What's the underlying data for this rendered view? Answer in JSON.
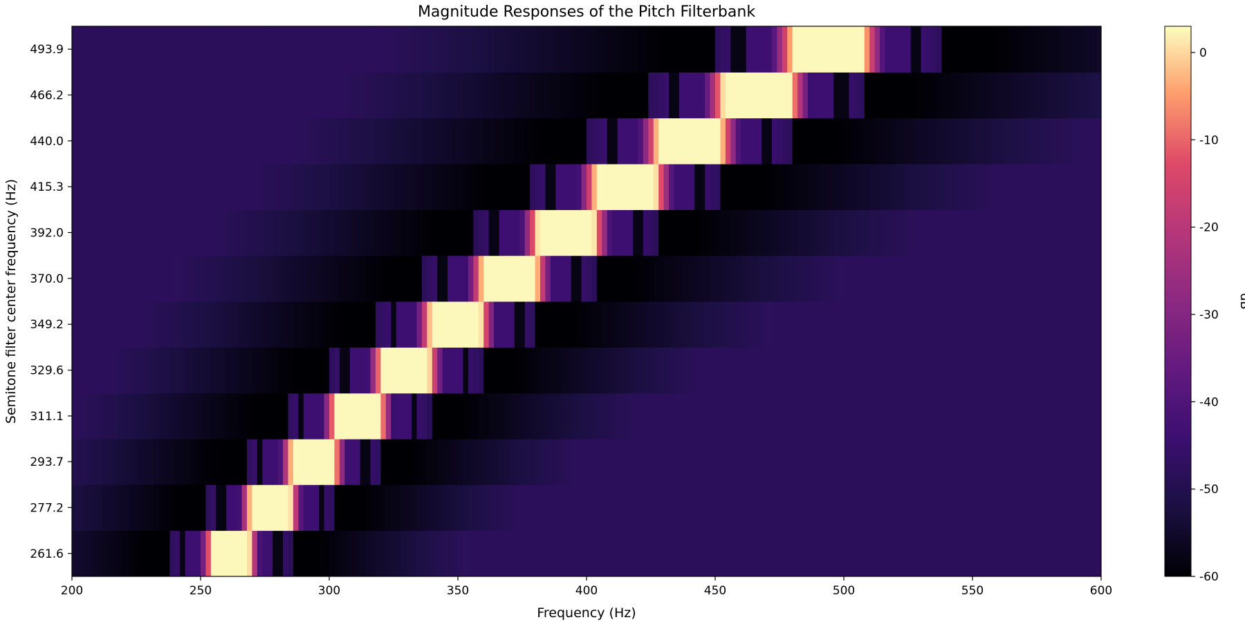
{
  "chart_data": {
    "type": "heatmap",
    "title": "Magnitude Responses of the Pitch Filterbank",
    "xlabel": "Frequency (Hz)",
    "ylabel": "Semitone filter center frequency (Hz)",
    "xlim": [
      200,
      600
    ],
    "x_ticks": [
      200,
      250,
      300,
      350,
      400,
      450,
      500,
      550,
      600
    ],
    "y_ticks": [
      "261.6",
      "277.2",
      "293.7",
      "311.1",
      "329.6",
      "349.2",
      "370.0",
      "392.0",
      "415.3",
      "440.0",
      "466.2",
      "493.9"
    ],
    "center_frequencies": [
      261.6,
      277.2,
      293.7,
      311.1,
      329.6,
      349.2,
      370.0,
      392.0,
      415.3,
      440.0,
      466.2,
      493.9
    ],
    "colormap": "magma",
    "colorbar": {
      "label": "dB",
      "range": [
        -60,
        3
      ],
      "ticks": [
        0,
        -10,
        -20,
        -30,
        -40,
        -50,
        -60
      ]
    },
    "grid": false
  }
}
